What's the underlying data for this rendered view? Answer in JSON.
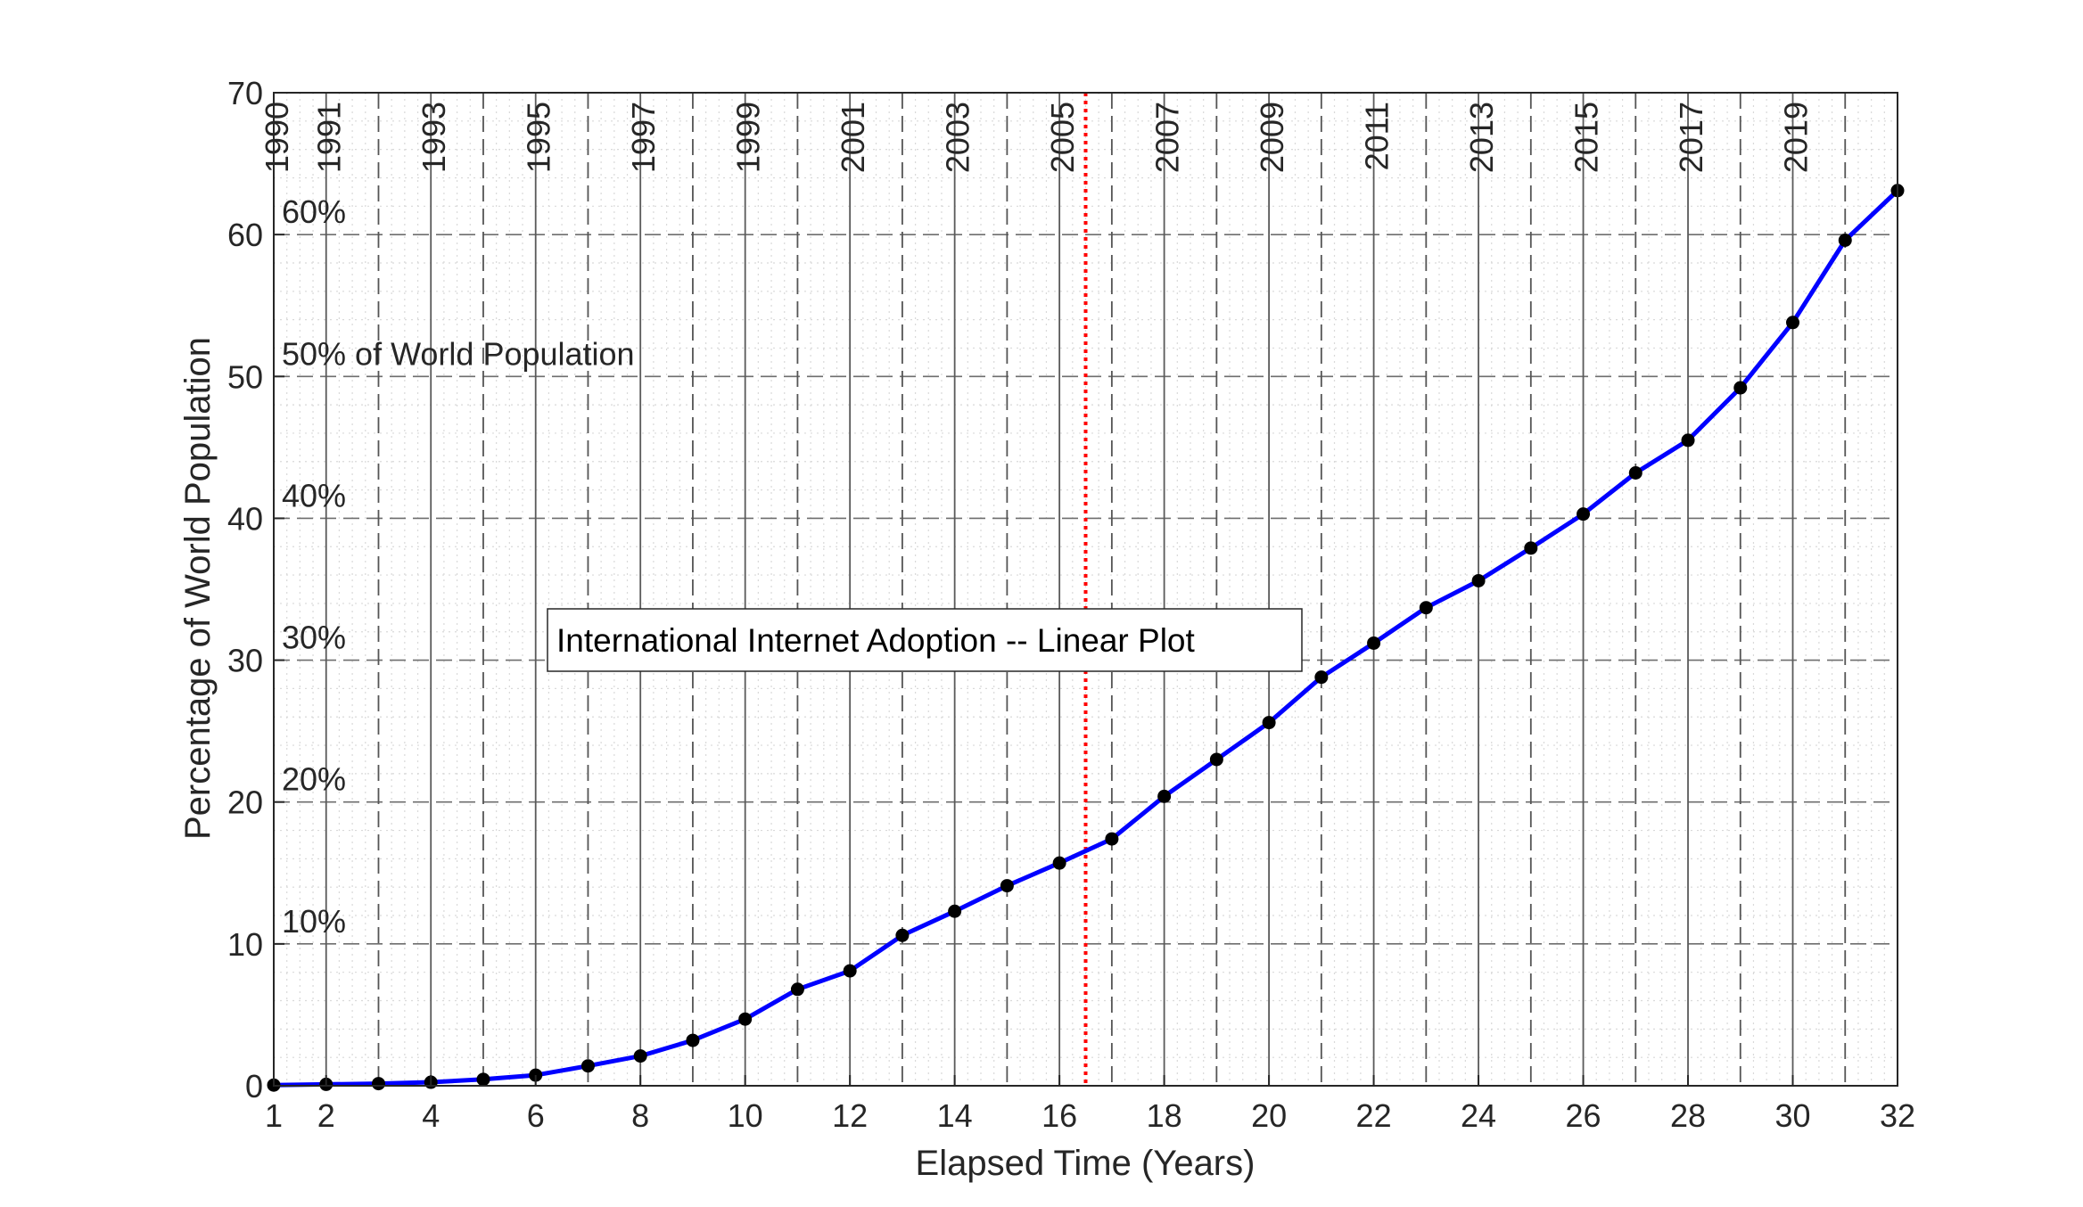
{
  "chart_data": {
    "type": "line",
    "title": "",
    "xlabel": "Elapsed Time (Years)",
    "ylabel": "Percentage of World Population",
    "xlim": [
      1,
      32
    ],
    "ylim": [
      0,
      70
    ],
    "x_ticks": [
      1,
      2,
      4,
      6,
      8,
      10,
      12,
      14,
      16,
      18,
      20,
      22,
      24,
      26,
      28,
      30,
      32
    ],
    "y_ticks": [
      0,
      10,
      20,
      30,
      40,
      50,
      60,
      70
    ],
    "grid": true,
    "series": [
      {
        "color": "#0000ff",
        "marker_color": "#000000",
        "x": [
          1,
          2,
          3,
          4,
          5,
          6,
          7,
          8,
          9,
          10,
          11,
          12,
          13,
          14,
          15,
          16,
          17,
          18,
          19,
          20,
          21,
          22,
          23,
          24,
          25,
          26,
          27,
          28,
          29,
          30,
          31,
          32
        ],
        "y": [
          0.05,
          0.1,
          0.15,
          0.25,
          0.45,
          0.75,
          1.4,
          2.1,
          3.2,
          4.7,
          6.8,
          8.1,
          10.6,
          12.3,
          14.1,
          15.7,
          17.4,
          20.4,
          23.0,
          25.6,
          28.8,
          31.2,
          33.7,
          35.6,
          37.9,
          40.3,
          43.2,
          45.5,
          49.2,
          53.8,
          59.6,
          63.1
        ]
      }
    ],
    "year_markers": [
      {
        "x": 1,
        "label": "1990",
        "style": "solid"
      },
      {
        "x": 2,
        "label": "1991",
        "style": "solid"
      },
      {
        "x": 3,
        "label": "",
        "style": "dashed"
      },
      {
        "x": 4,
        "label": "1993",
        "style": "solid"
      },
      {
        "x": 5,
        "label": "",
        "style": "dashed"
      },
      {
        "x": 6,
        "label": "1995",
        "style": "solid"
      },
      {
        "x": 7,
        "label": "",
        "style": "dashed"
      },
      {
        "x": 8,
        "label": "1997",
        "style": "solid"
      },
      {
        "x": 9,
        "label": "",
        "style": "dashed"
      },
      {
        "x": 10,
        "label": "1999",
        "style": "solid"
      },
      {
        "x": 11,
        "label": "",
        "style": "dashed"
      },
      {
        "x": 12,
        "label": "2001",
        "style": "solid"
      },
      {
        "x": 13,
        "label": "",
        "style": "dashed"
      },
      {
        "x": 14,
        "label": "2003",
        "style": "solid"
      },
      {
        "x": 15,
        "label": "",
        "style": "dashed"
      },
      {
        "x": 16,
        "label": "2005",
        "style": "solid"
      },
      {
        "x": 17,
        "label": "",
        "style": "dashed"
      },
      {
        "x": 18,
        "label": "2007",
        "style": "solid"
      },
      {
        "x": 19,
        "label": "",
        "style": "dashed"
      },
      {
        "x": 20,
        "label": "2009",
        "style": "solid"
      },
      {
        "x": 21,
        "label": "",
        "style": "dashed"
      },
      {
        "x": 22,
        "label": "2011",
        "style": "solid"
      },
      {
        "x": 23,
        "label": "",
        "style": "dashed"
      },
      {
        "x": 24,
        "label": "2013",
        "style": "solid"
      },
      {
        "x": 25,
        "label": "",
        "style": "dashed"
      },
      {
        "x": 26,
        "label": "2015",
        "style": "solid"
      },
      {
        "x": 27,
        "label": "",
        "style": "dashed"
      },
      {
        "x": 28,
        "label": "2017",
        "style": "solid"
      },
      {
        "x": 29,
        "label": "",
        "style": "dashed"
      },
      {
        "x": 30,
        "label": "2019",
        "style": "solid"
      },
      {
        "x": 31,
        "label": "",
        "style": "dashed"
      },
      {
        "x": 32,
        "label": "",
        "style": "solid"
      }
    ],
    "percent_labels": [
      {
        "y": 10,
        "label": "10%"
      },
      {
        "y": 20,
        "label": "20%"
      },
      {
        "y": 30,
        "label": "30%"
      },
      {
        "y": 40,
        "label": "40%"
      },
      {
        "y": 50,
        "label": "50% of World Population"
      },
      {
        "y": 60,
        "label": "60%"
      }
    ],
    "reference_line": {
      "x": 16.5,
      "color": "#ff0000",
      "style": "dotted"
    },
    "annotation": "International Internet Adoption -- Linear Plot"
  }
}
